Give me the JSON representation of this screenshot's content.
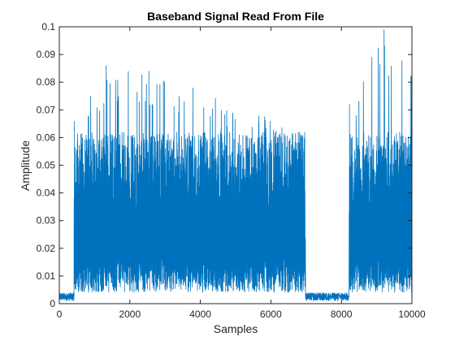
{
  "chart_data": {
    "type": "line",
    "title": "Baseband Signal Read From File",
    "xlabel": "Samples",
    "ylabel": "Amplitude",
    "xlim": [
      0,
      10000
    ],
    "ylim": [
      0,
      0.1
    ],
    "xticks": [
      0,
      2000,
      4000,
      6000,
      8000,
      10000
    ],
    "xtick_labels": [
      "0",
      "2000",
      "4000",
      "6000",
      "8000",
      "10000"
    ],
    "yticks": [
      0,
      0.01,
      0.02,
      0.03,
      0.04,
      0.05,
      0.06,
      0.07,
      0.08,
      0.09,
      0.1
    ],
    "ytick_labels": [
      "0",
      "0.01",
      "0.02",
      "0.03",
      "0.04",
      "0.05",
      "0.06",
      "0.07",
      "0.08",
      "0.09",
      "0.1"
    ],
    "grid": false,
    "line_color": "#0072BD",
    "series": [
      {
        "description_points": [
          {
            "x": 0,
            "y": 0.003
          },
          {
            "x": 400,
            "y": 0.004
          },
          {
            "x": 430,
            "y": 0.066
          },
          {
            "x": 1330,
            "y": 0.086
          },
          {
            "x": 2540,
            "y": 0.084
          },
          {
            "x": 3790,
            "y": 0.078
          },
          {
            "x": 6960,
            "y": 0.062
          },
          {
            "x": 7000,
            "y": 0.003
          },
          {
            "x": 8200,
            "y": 0.002
          },
          {
            "x": 8230,
            "y": 0.072
          },
          {
            "x": 9210,
            "y": 0.099
          },
          {
            "x": 9990,
            "y": 0.082
          },
          {
            "x": 10000,
            "y": 0.03
          }
        ]
      }
    ]
  }
}
